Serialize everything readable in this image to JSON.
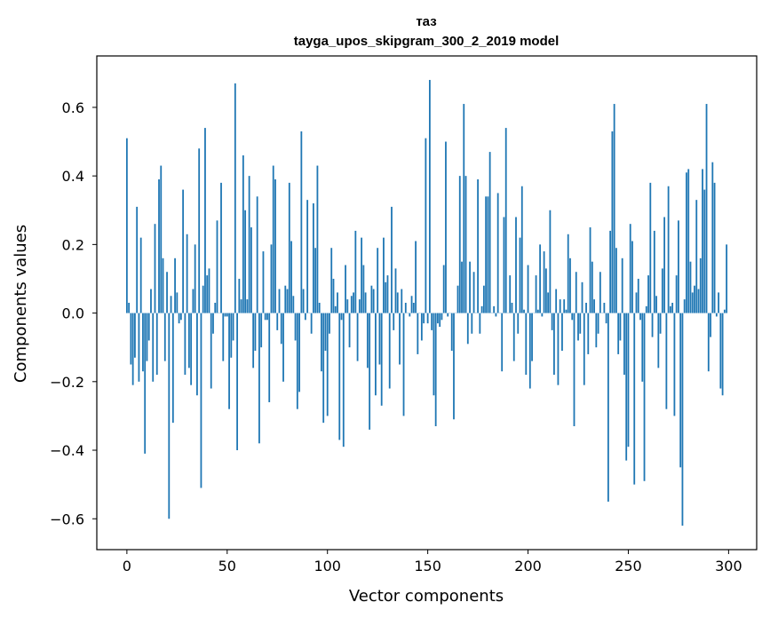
{
  "chart_data": {
    "type": "bar",
    "title": "таз",
    "subtitle": "tayga_upos_skipgram_300_2_2019 model",
    "xlabel": "Vector components",
    "ylabel": "Components values",
    "xlim": [
      -15,
      314
    ],
    "ylim": [
      -0.69,
      0.75
    ],
    "xticks": [
      0,
      50,
      100,
      150,
      200,
      250,
      300
    ],
    "xtick_labels": [
      "0",
      "50",
      "100",
      "150",
      "200",
      "250",
      "300"
    ],
    "yticks": [
      -0.6,
      -0.4,
      -0.2,
      0.0,
      0.2,
      0.4,
      0.6
    ],
    "ytick_labels": [
      "−0.6",
      "−0.4",
      "−0.2",
      "0.0",
      "0.2",
      "0.4",
      "0.6"
    ],
    "bar_color": "#1f77b4",
    "grid": false,
    "x": "0..299 (component index)",
    "values": [
      0.51,
      0.03,
      -0.15,
      -0.21,
      -0.13,
      0.31,
      -0.2,
      0.22,
      -0.17,
      -0.41,
      -0.14,
      -0.08,
      0.07,
      -0.2,
      0.26,
      -0.18,
      0.39,
      0.43,
      0.16,
      -0.14,
      0.12,
      -0.6,
      0.05,
      -0.32,
      0.16,
      0.06,
      -0.03,
      -0.02,
      0.36,
      -0.18,
      0.23,
      -0.16,
      -0.21,
      0.07,
      0.2,
      -0.24,
      0.48,
      -0.51,
      0.08,
      0.54,
      0.11,
      0.13,
      -0.22,
      -0.06,
      0.03,
      0.27,
      0.0,
      0.38,
      -0.14,
      -0.01,
      -0.01,
      -0.28,
      -0.13,
      -0.08,
      0.67,
      -0.4,
      0.1,
      0.04,
      0.46,
      0.3,
      0.04,
      0.4,
      0.25,
      -0.16,
      -0.11,
      0.34,
      -0.38,
      -0.1,
      0.18,
      -0.02,
      -0.02,
      -0.26,
      0.2,
      0.43,
      0.39,
      -0.05,
      0.07,
      -0.09,
      -0.2,
      0.08,
      0.07,
      0.38,
      0.21,
      0.05,
      -0.08,
      -0.28,
      -0.23,
      0.53,
      0.07,
      -0.02,
      0.33,
      0.0,
      -0.06,
      0.32,
      0.19,
      0.43,
      0.03,
      -0.17,
      -0.32,
      -0.11,
      -0.3,
      -0.06,
      0.19,
      0.1,
      0.02,
      0.06,
      -0.37,
      -0.02,
      -0.39,
      0.14,
      0.04,
      -0.1,
      0.05,
      0.06,
      0.24,
      -0.14,
      0.04,
      0.22,
      0.14,
      0.06,
      -0.16,
      -0.34,
      0.08,
      0.07,
      -0.24,
      0.19,
      -0.15,
      -0.27,
      0.22,
      0.09,
      0.11,
      -0.22,
      0.31,
      -0.05,
      0.13,
      0.06,
      -0.15,
      0.07,
      -0.3,
      0.03,
      0.0,
      -0.01,
      0.05,
      0.03,
      0.21,
      -0.12,
      0.0,
      -0.08,
      -0.03,
      0.51,
      -0.03,
      0.68,
      -0.05,
      -0.24,
      -0.33,
      -0.03,
      -0.04,
      -0.02,
      0.14,
      0.5,
      -0.01,
      0.0,
      -0.11,
      -0.31,
      0.0,
      0.08,
      0.4,
      0.15,
      0.61,
      0.4,
      -0.09,
      0.15,
      -0.06,
      0.12,
      0.0,
      0.39,
      -0.06,
      0.02,
      0.08,
      0.34,
      0.34,
      0.47,
      0.0,
      0.02,
      -0.01,
      0.35,
      0.0,
      -0.17,
      0.28,
      0.54,
      0.0,
      0.11,
      0.03,
      -0.14,
      0.28,
      -0.06,
      0.22,
      0.37,
      0.01,
      -0.18,
      0.14,
      -0.22,
      -0.14,
      0.0,
      0.11,
      0.01,
      0.2,
      -0.01,
      0.18,
      0.13,
      0.06,
      0.3,
      -0.05,
      -0.18,
      0.07,
      -0.21,
      0.04,
      -0.11,
      0.04,
      0.01,
      0.23,
      0.16,
      -0.02,
      -0.33,
      0.12,
      -0.08,
      -0.06,
      0.09,
      -0.21,
      0.03,
      -0.12,
      0.25,
      0.15,
      0.04,
      -0.1,
      -0.06,
      0.12,
      0.0,
      0.03,
      -0.03,
      -0.55,
      0.24,
      0.53,
      0.61,
      0.19,
      -0.12,
      -0.08,
      0.16,
      -0.18,
      -0.43,
      -0.39,
      0.26,
      0.21,
      -0.5,
      0.06,
      0.1,
      -0.02,
      -0.2,
      -0.49,
      0.02,
      0.11,
      0.38,
      -0.07,
      0.24,
      0.05,
      -0.16,
      -0.06,
      0.13,
      0.28,
      -0.28,
      0.37,
      0.02,
      0.03,
      -0.3,
      0.11,
      0.27,
      -0.45,
      -0.62,
      0.04,
      0.41,
      0.42,
      0.15,
      0.06,
      0.08,
      0.33,
      0.07,
      0.16,
      0.42,
      0.36,
      0.61,
      -0.17,
      -0.07,
      0.44,
      0.38,
      -0.01,
      0.06,
      -0.22,
      -0.24,
      0.01,
      0.2
    ]
  }
}
